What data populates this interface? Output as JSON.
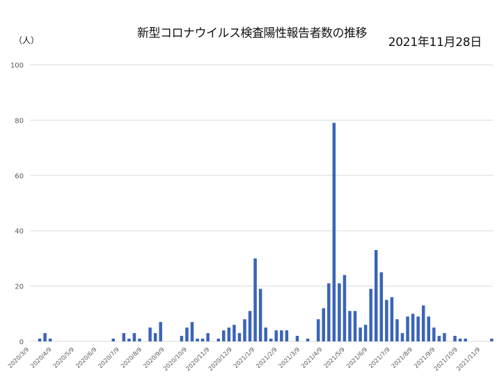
{
  "header": {
    "title": "新型コロナウイルス検査陽性報告者数の推移",
    "date": "2021年11月28日",
    "unit": "（人）"
  },
  "colors": {
    "bar": "#3a64b8",
    "grid": "#d9d9d9",
    "axis_text": "#595959"
  },
  "chart_data": {
    "type": "bar",
    "title": "新型コロナウイルス検査陽性報告者数の推移",
    "subtitle": "2021年11月28日",
    "xlabel": "",
    "ylabel": "（人）",
    "ylim": [
      0,
      100
    ],
    "yticks": [
      0,
      20,
      40,
      60,
      80,
      100
    ],
    "grid": true,
    "legend": "none",
    "xtick_labels": [
      "2020/3/9",
      "2020/4/9",
      "2020/5/9",
      "2020/6/9",
      "2020/7/9",
      "2020/8/9",
      "2020/9/9",
      "2020/10/9",
      "2020/11/9",
      "2020/12/9",
      "2021/1/9",
      "2021/2/9",
      "2021/3/9",
      "2021/4/9",
      "2021/5/9",
      "2021/6/9",
      "2021/7/9",
      "2021/8/9",
      "2021/9/9",
      "2021/10/9",
      "2021/11/9"
    ],
    "bin": "weekly",
    "values": [
      0,
      1,
      3,
      1,
      0,
      0,
      0,
      0,
      0,
      0,
      0,
      0,
      0,
      0,
      0,
      1,
      0,
      3,
      1,
      3,
      1,
      0,
      5,
      3,
      7,
      0,
      0,
      0,
      2,
      5,
      7,
      1,
      1,
      3,
      0,
      1,
      4,
      5,
      6,
      3,
      8,
      11,
      30,
      19,
      5,
      1,
      4,
      4,
      4,
      0,
      2,
      0,
      1,
      0,
      8,
      12,
      21,
      79,
      21,
      24,
      11,
      11,
      5,
      6,
      19,
      33,
      25,
      15,
      16,
      8,
      3,
      9,
      10,
      9,
      13,
      9,
      5,
      2,
      3,
      0,
      2,
      1,
      1,
      0,
      0,
      0,
      0,
      1
    ]
  }
}
